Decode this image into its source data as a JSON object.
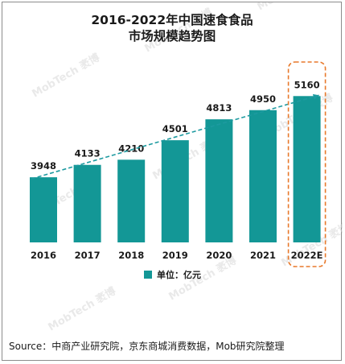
{
  "chart_data": {
    "type": "bar",
    "title_line1": "2016-2022年中国速食食品",
    "title_line2": "市场规模趋势图",
    "categories": [
      "2016",
      "2017",
      "2018",
      "2019",
      "2020",
      "2021",
      "2022E"
    ],
    "series": [
      {
        "name": "单位：亿元",
        "values": [
          3948,
          4133,
          4210,
          4501,
          4813,
          4950,
          5160
        ]
      }
    ],
    "value_labels": [
      "3948",
      "4133",
      "4210",
      "4501",
      "4813",
      "4950",
      "5160"
    ],
    "trendline": "dashed",
    "highlighted_category": "2022E",
    "legend_position": "bottom",
    "grid": false,
    "colors": {
      "bar": "#139796",
      "trend": "#1d9aa0",
      "highlight": "#e8792b"
    }
  },
  "source_text": "Source：中商产业研究院，京东商城消费数据，Mob研究院整理",
  "watermark": "MobTech 袤博"
}
